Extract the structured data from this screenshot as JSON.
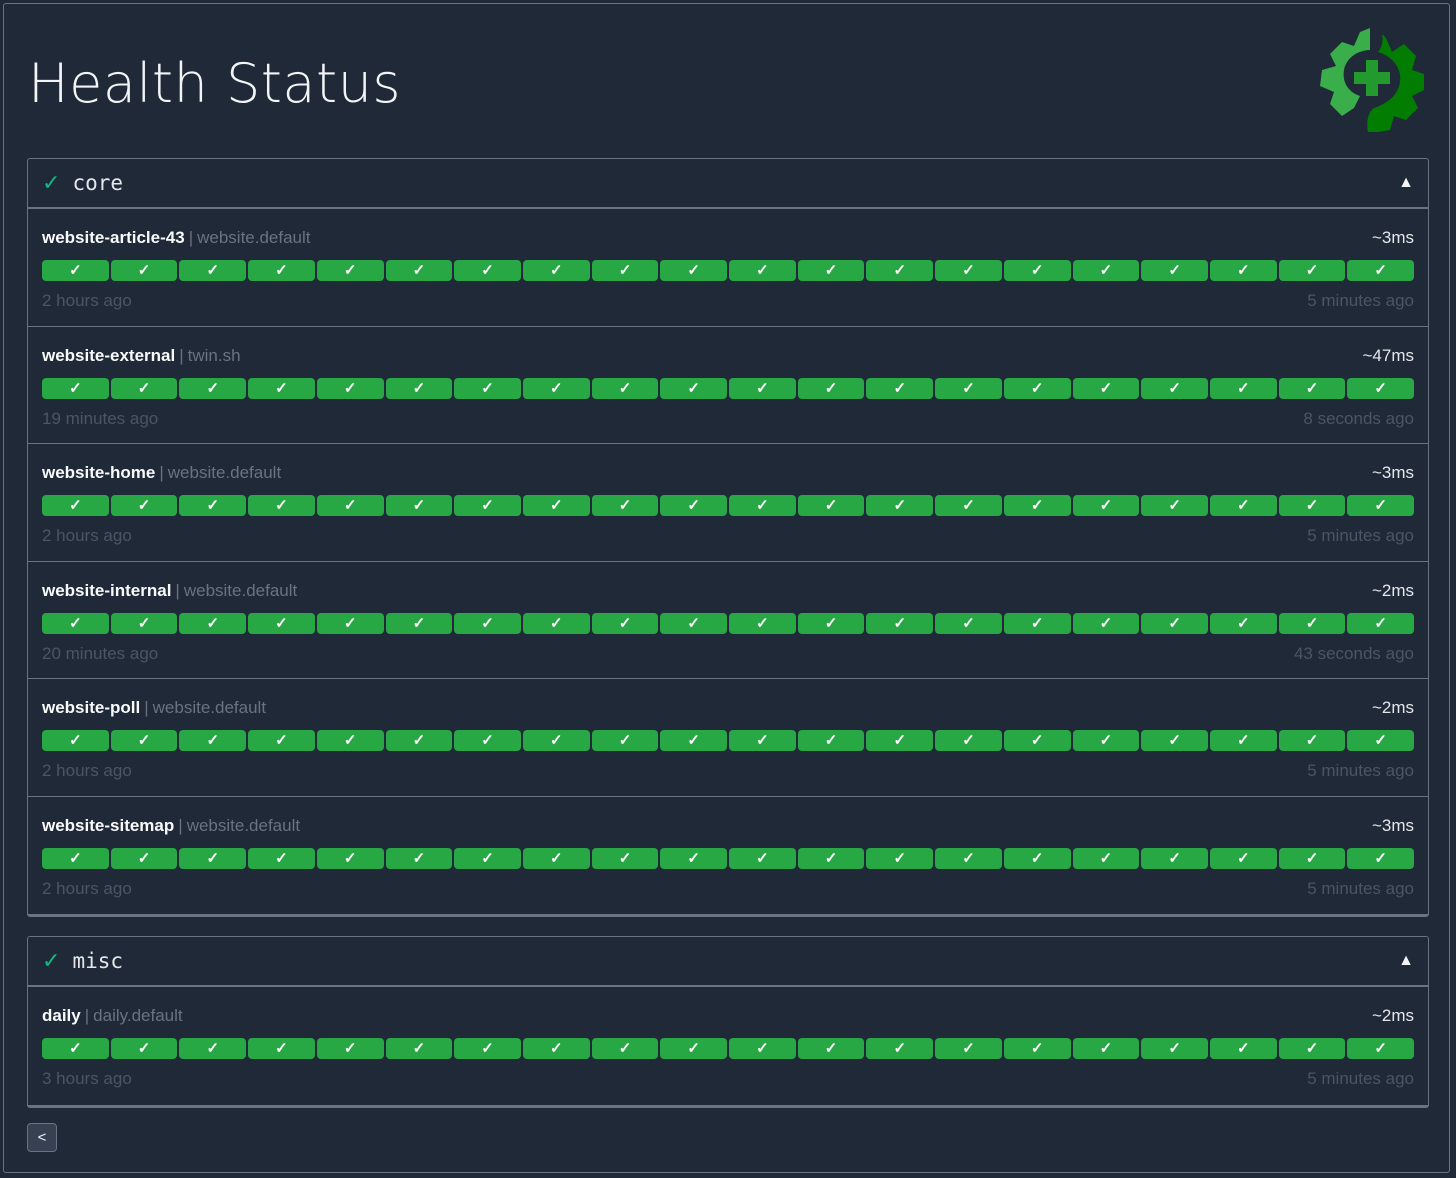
{
  "page": {
    "title": "Health Status"
  },
  "colors": {
    "success": "#28a745",
    "background": "#1f2937",
    "border": "#6b7280"
  },
  "icons": {
    "logo": "gear-health-logo",
    "check": "check-icon",
    "collapse": "triangle-up-icon",
    "back": "chevron-left-icon"
  },
  "groups": [
    {
      "name": "core",
      "status_icon": "✓",
      "toggle": "▲",
      "endpoints": [
        {
          "name": "website-article-43",
          "group": "website.default",
          "response_time": "~3ms",
          "oldest": "2 hours ago",
          "newest": "5 minutes ago"
        },
        {
          "name": "website-external",
          "group": "twin.sh",
          "response_time": "~47ms",
          "oldest": "19 minutes ago",
          "newest": "8 seconds ago"
        },
        {
          "name": "website-home",
          "group": "website.default",
          "response_time": "~3ms",
          "oldest": "2 hours ago",
          "newest": "5 minutes ago"
        },
        {
          "name": "website-internal",
          "group": "website.default",
          "response_time": "~2ms",
          "oldest": "20 minutes ago",
          "newest": "43 seconds ago"
        },
        {
          "name": "website-poll",
          "group": "website.default",
          "response_time": "~2ms",
          "oldest": "2 hours ago",
          "newest": "5 minutes ago"
        },
        {
          "name": "website-sitemap",
          "group": "website.default",
          "response_time": "~3ms",
          "oldest": "2 hours ago",
          "newest": "5 minutes ago"
        }
      ]
    },
    {
      "name": "misc",
      "status_icon": "✓",
      "toggle": "▲",
      "endpoints": [
        {
          "name": "daily",
          "group": "daily.default",
          "response_time": "~2ms",
          "oldest": "3 hours ago",
          "newest": "5 minutes ago"
        }
      ]
    }
  ],
  "result_mark": "✓",
  "results_per_endpoint": [
    "success",
    "success",
    "success",
    "success",
    "success",
    "success",
    "success",
    "success",
    "success",
    "success",
    "success",
    "success",
    "success",
    "success",
    "success",
    "success",
    "success",
    "success",
    "success",
    "success"
  ],
  "pagination": {
    "back_label": "<"
  }
}
